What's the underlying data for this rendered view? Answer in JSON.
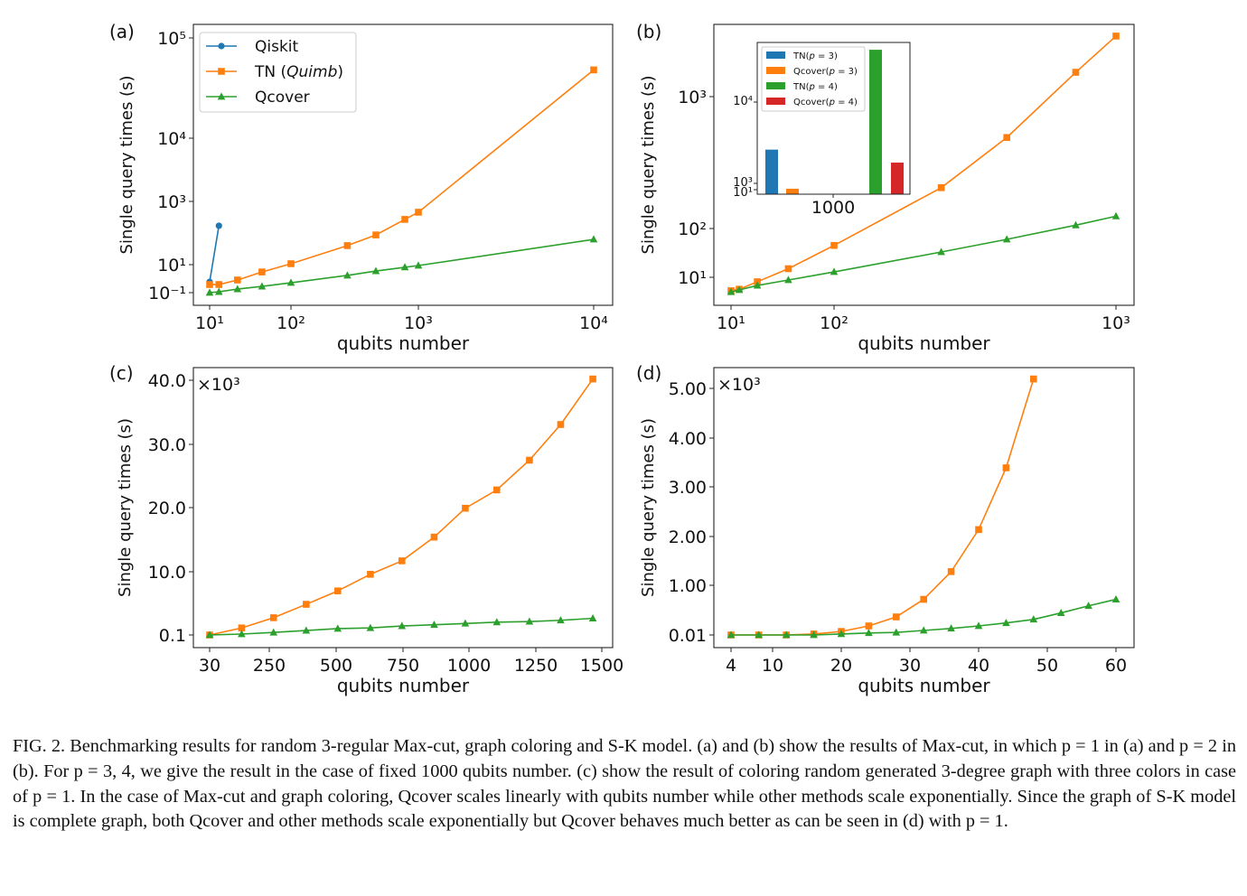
{
  "colors": {
    "qiskit": "#1f77b4",
    "tn": "#ff7f0e",
    "qcover": "#2ca02c",
    "qcover_p4": "#d62728"
  },
  "chart_data": [
    {
      "panel": "(a)",
      "type": "line",
      "xscale": "log",
      "yscale": "log",
      "xlabel": "qubits number",
      "ylabel": "Single query times (s)",
      "x_ticks": [
        {
          "value": 10,
          "label": "10¹"
        },
        {
          "value": 100,
          "label": "10²"
        },
        {
          "value": 1000,
          "label": "10³"
        },
        {
          "value": 10000,
          "label": "10⁴"
        }
      ],
      "y_ticks": [
        {
          "value": 0.1,
          "label": "10⁻¹"
        },
        {
          "value": 10,
          "label": "10¹"
        },
        {
          "value": 1000,
          "label": "10³"
        },
        {
          "value": 10000,
          "label": "10⁴"
        },
        {
          "value": 100000,
          "label": "10⁵"
        }
      ],
      "legend": "top-left",
      "series": [
        {
          "name": "Qiskit",
          "color_key": "qiskit",
          "marker": "circle",
          "x": [
            10,
            13
          ],
          "y": [
            0.59,
            170
          ]
        },
        {
          "name": "TN (Quimb)",
          "name_plain": "TN (",
          "name_italic": "Quimb",
          "name_end": ")",
          "color_key": "tn",
          "marker": "square",
          "x": [
            10,
            13,
            22,
            44,
            100,
            277,
            464,
            783,
            1000,
            10000
          ],
          "y": [
            0.38,
            0.38,
            0.8,
            3.0,
            10.7,
            40,
            87,
            270,
            455,
            48000
          ]
        },
        {
          "name": "Qcover",
          "color_key": "qcover",
          "marker": "triangle",
          "x": [
            10,
            13,
            22,
            44,
            100,
            277,
            464,
            783,
            1000,
            10000
          ],
          "y": [
            0.1,
            0.115,
            0.18,
            0.28,
            0.51,
            1.7,
            3.5,
            6.5,
            8.6,
            63
          ]
        }
      ]
    },
    {
      "panel": "(b)",
      "type": "line",
      "xscale": "log",
      "yscale": "log",
      "xlabel": "qubits number",
      "ylabel": "Single query times (s)",
      "x_ticks": [
        {
          "value": 10,
          "label": "10¹"
        },
        {
          "value": 100,
          "label": "10²"
        },
        {
          "value": 1000,
          "label": "10³"
        }
      ],
      "y_ticks": [
        {
          "value": 10,
          "label": "10¹"
        },
        {
          "value": 100,
          "label": "10²"
        },
        {
          "value": 1000,
          "label": "10³"
        }
      ],
      "series": [
        {
          "color_key": "tn",
          "marker": "square",
          "x": [
            10,
            12,
            18,
            36,
            100,
            240,
            410,
            720,
            1000
          ],
          "y": [
            5.3,
            5.7,
            8.1,
            15,
            45,
            204,
            490,
            1530,
            2880
          ]
        },
        {
          "color_key": "qcover",
          "marker": "triangle",
          "x": [
            10,
            12,
            18,
            36,
            100,
            240,
            410,
            720,
            1000
          ],
          "y": [
            5.0,
            5.5,
            6.8,
            8.8,
            12.9,
            33,
            60,
            106,
            124
          ]
        }
      ],
      "inset": {
        "type": "bar",
        "yscale": "log",
        "category": "1000",
        "y_ticks": [
          {
            "value": 10,
            "label": "10¹"
          },
          {
            "value": 1000,
            "label": "10³"
          },
          {
            "value": 10000,
            "label": "10⁴"
          }
        ],
        "legend": "top-left",
        "bars": [
          {
            "name": "TN(p = 3)",
            "pre": "TN(",
            "var": "p",
            "post": " = 3)",
            "color_key": "qiskit",
            "value": 2600
          },
          {
            "name": "Qcover(p = 3)",
            "pre": "Qcover(",
            "var": "p",
            "post": " = 3)",
            "color_key": "tn",
            "value": 20
          },
          {
            "name": "TN(p = 4)",
            "pre": "TN(",
            "var": "p",
            "post": " = 4)",
            "color_key": "qcover",
            "value": 44000
          },
          {
            "name": "Qcover(p = 4)",
            "pre": "Qcover(",
            "var": "p",
            "post": " = 4)",
            "color_key": "qcover_p4",
            "value": 1800
          }
        ]
      }
    },
    {
      "panel": "(c)",
      "type": "line",
      "xscale": "linear",
      "yscale": "linear",
      "y_multiplier": "×10³",
      "xlabel": "qubits number",
      "ylabel": "Single query times (s)",
      "x_ticks": [
        {
          "value": 30,
          "label": "30"
        },
        {
          "value": 250,
          "label": "250"
        },
        {
          "value": 500,
          "label": "500"
        },
        {
          "value": 750,
          "label": "750"
        },
        {
          "value": 1000,
          "label": "1000"
        },
        {
          "value": 1250,
          "label": "1250"
        },
        {
          "value": 1500,
          "label": "1500"
        }
      ],
      "y_ticks": [
        {
          "value": 0.1,
          "label": "0.1"
        },
        {
          "value": 10,
          "label": "10.0"
        },
        {
          "value": 20,
          "label": "20.0"
        },
        {
          "value": 30,
          "label": "30.0"
        },
        {
          "value": 40,
          "label": "40.0"
        }
      ],
      "series": [
        {
          "color_key": "tn",
          "marker": "square",
          "x": [
            30,
            148,
            266,
            388,
            506,
            628,
            746,
            868,
            986,
            1104,
            1226,
            1344,
            1466
          ],
          "y": [
            0.1,
            1.2,
            2.8,
            4.9,
            7.0,
            9.6,
            11.7,
            15.4,
            19.9,
            22.8,
            27.5,
            33.1,
            40.2
          ]
        },
        {
          "color_key": "qcover",
          "marker": "triangle",
          "x": [
            30,
            148,
            266,
            388,
            506,
            628,
            746,
            868,
            986,
            1104,
            1226,
            1344,
            1466
          ],
          "y": [
            0.1,
            0.24,
            0.5,
            0.8,
            1.1,
            1.2,
            1.5,
            1.7,
            1.9,
            2.1,
            2.2,
            2.4,
            2.7
          ]
        }
      ]
    },
    {
      "panel": "(d)",
      "type": "line",
      "xscale": "linear",
      "yscale": "linear",
      "y_multiplier": "×10³",
      "xlabel": "qubits number",
      "ylabel": "Single query times (s)",
      "x_ticks": [
        {
          "value": 4,
          "label": "4"
        },
        {
          "value": 10,
          "label": "10"
        },
        {
          "value": 20,
          "label": "20"
        },
        {
          "value": 30,
          "label": "30"
        },
        {
          "value": 40,
          "label": "40"
        },
        {
          "value": 50,
          "label": "50"
        },
        {
          "value": 60,
          "label": "60"
        }
      ],
      "y_ticks": [
        {
          "value": 0.01,
          "label": "0.01"
        },
        {
          "value": 1,
          "label": "1.00"
        },
        {
          "value": 2,
          "label": "2.00"
        },
        {
          "value": 3,
          "label": "3.00"
        },
        {
          "value": 4,
          "label": "4.00"
        },
        {
          "value": 5,
          "label": "5.00"
        }
      ],
      "series": [
        {
          "color_key": "tn",
          "marker": "square",
          "x": [
            4,
            8,
            12,
            16,
            20,
            24,
            28,
            32,
            36,
            40,
            44,
            48
          ],
          "y": [
            0.01,
            0.01,
            0.01,
            0.03,
            0.08,
            0.19,
            0.37,
            0.72,
            1.28,
            2.14,
            3.39,
            5.19
          ]
        },
        {
          "color_key": "qcover",
          "marker": "triangle",
          "x": [
            4,
            8,
            12,
            16,
            20,
            24,
            28,
            32,
            36,
            40,
            44,
            48,
            52,
            56,
            60
          ],
          "y": [
            0.01,
            0.01,
            0.01,
            0.01,
            0.03,
            0.05,
            0.06,
            0.1,
            0.14,
            0.19,
            0.25,
            0.32,
            0.45,
            0.59,
            0.72
          ]
        }
      ]
    }
  ],
  "caption": "FIG. 2. Benchmarking results for random 3-regular Max-cut, graph coloring and S-K model. (a) and (b) show the results of Max-cut, in which p = 1 in (a) and p = 2 in (b). For p = 3, 4, we give the result in the case of fixed 1000 qubits number. (c) show the result of coloring random generated 3-degree graph with three colors in case of p = 1. In the case of Max-cut and graph coloring, Qcover scales linearly with qubits number while other methods scale exponentially. Since the graph of S-K model is complete graph, both Qcover and other methods scale exponentially but Qcover behaves much better as can be seen in (d) with p = 1."
}
